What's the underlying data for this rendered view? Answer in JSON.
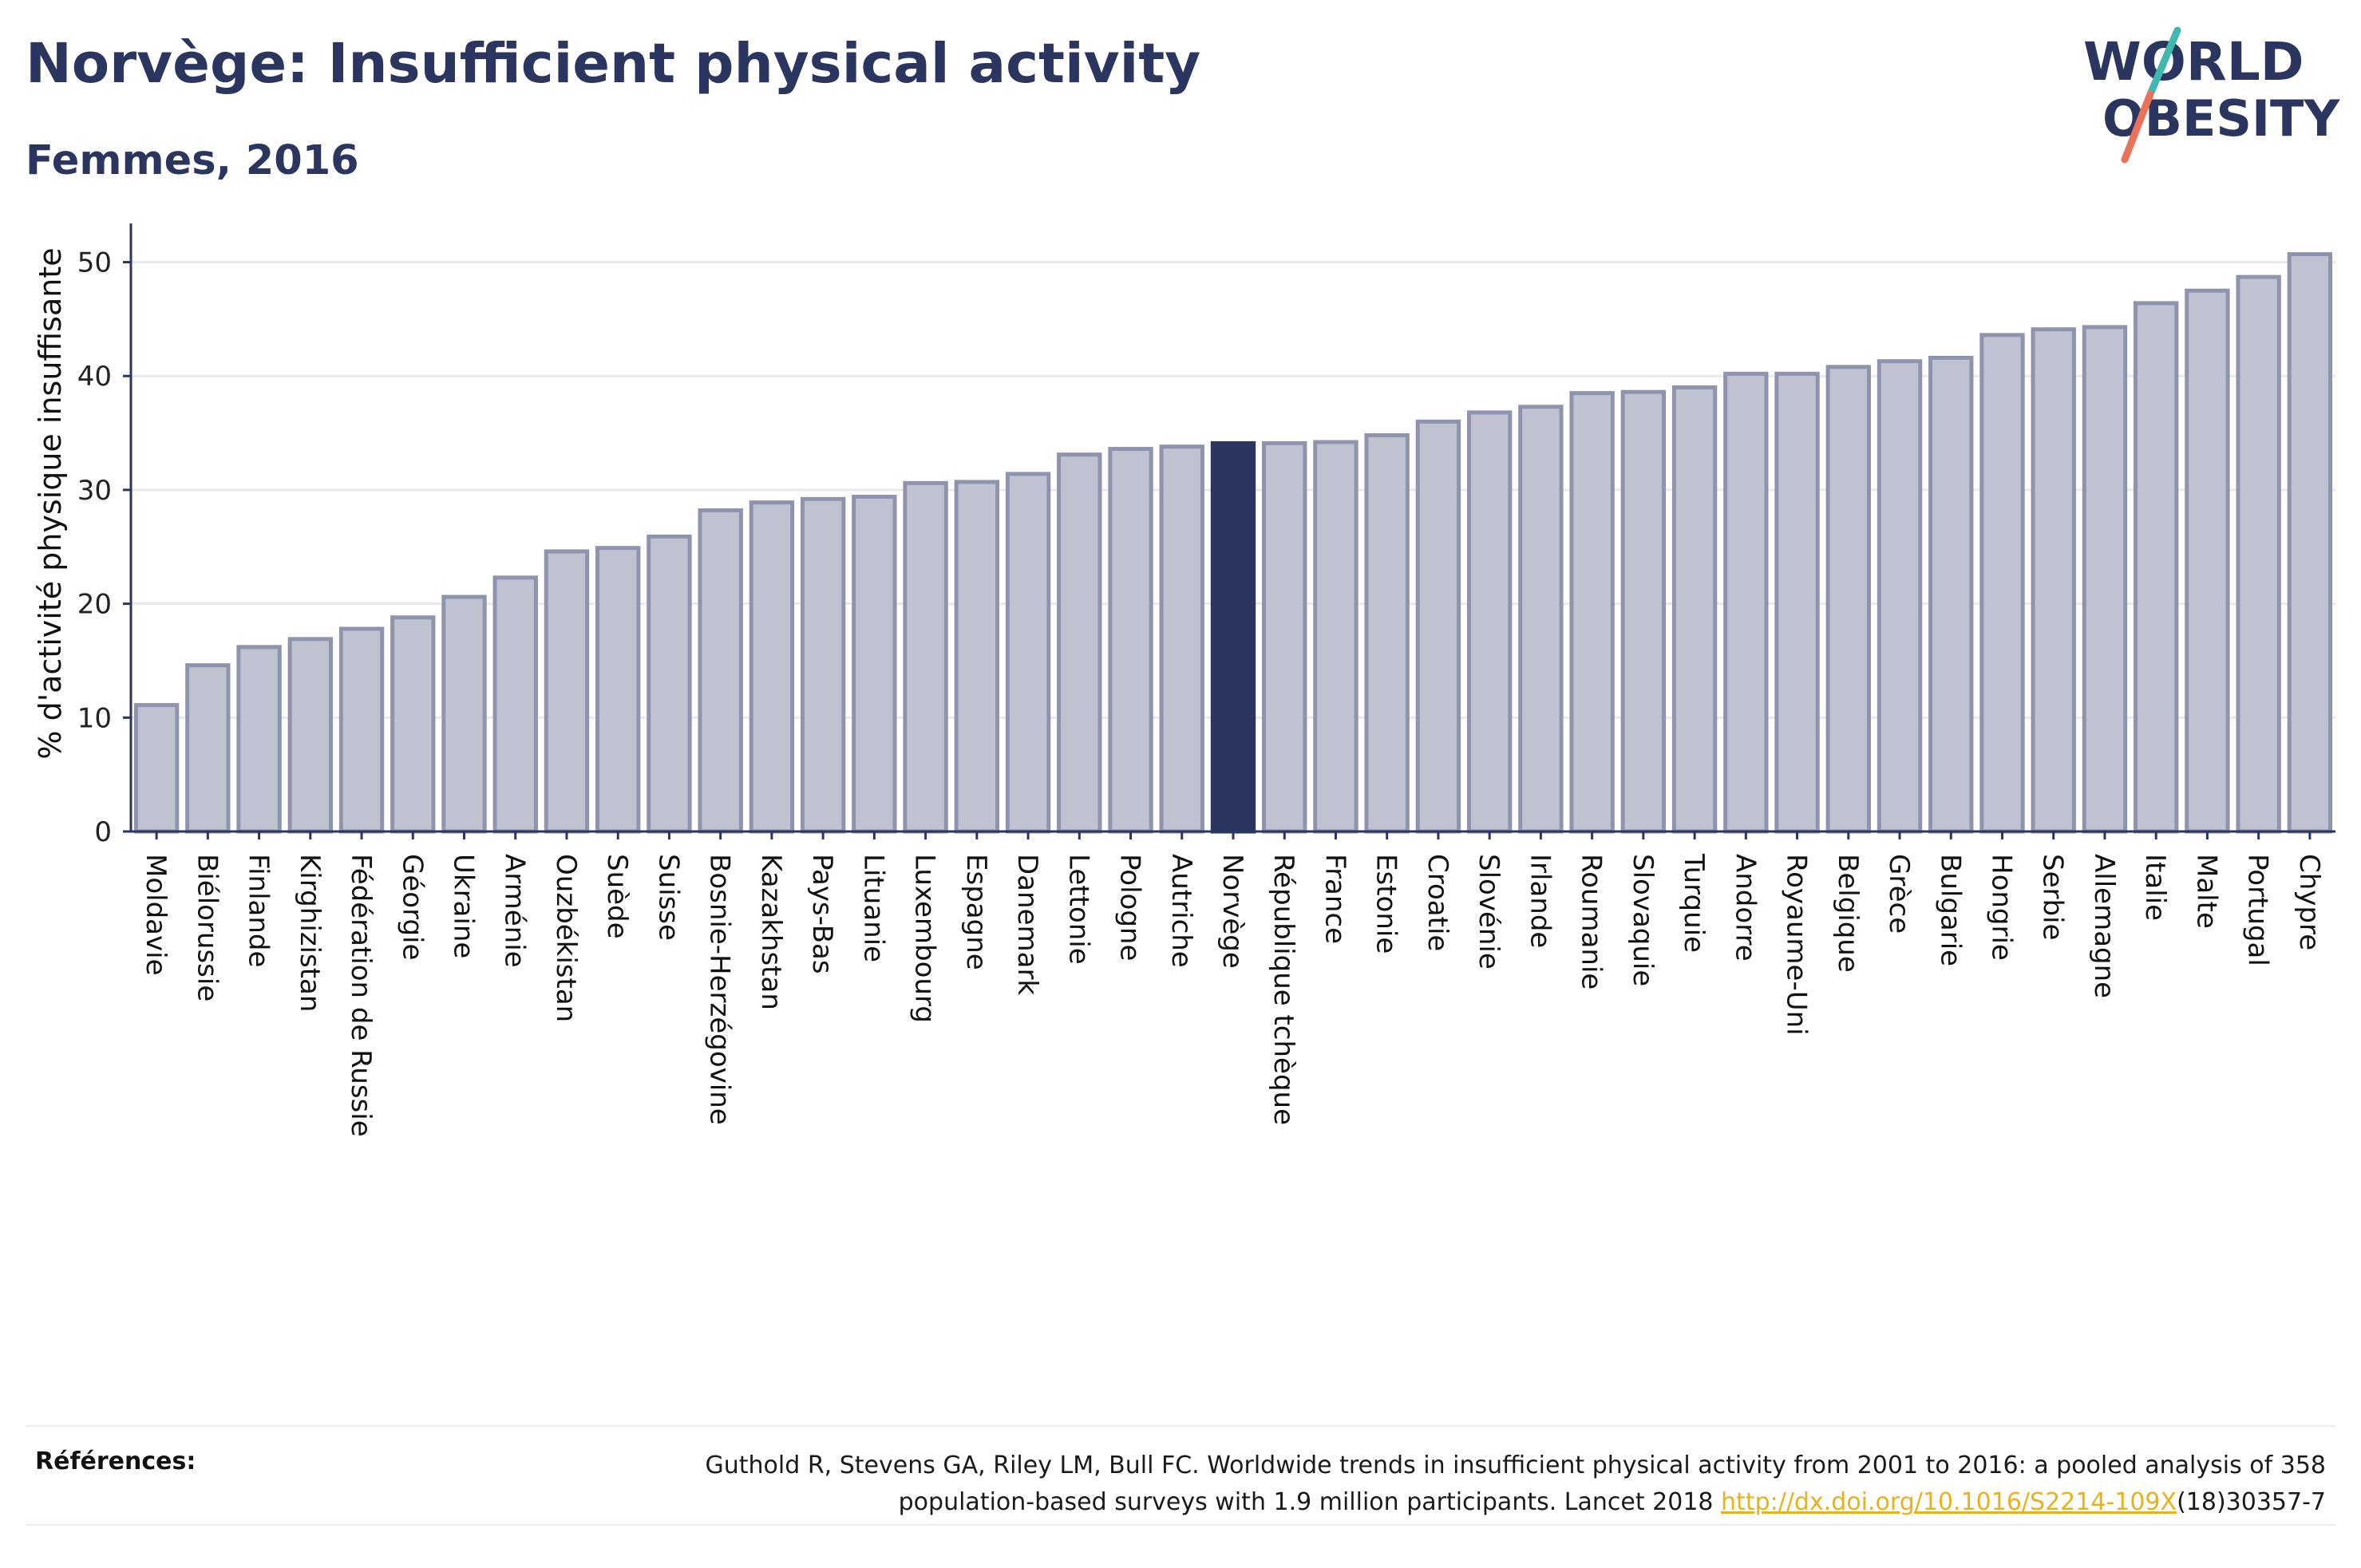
{
  "header": {
    "title": "Norvège: Insufficient physical activity",
    "subtitle": "Femmes, 2016"
  },
  "logo": {
    "line1": "WORLD",
    "line2": "OBESITY",
    "text_color": "#2b3660",
    "slash_teal": "#3fb8b0",
    "slash_coral": "#e8735a"
  },
  "colors": {
    "bar": "#bfc3d1",
    "bar_stroke": "#8e94ad",
    "highlight": "#2b3660",
    "grid": "#e9e9ee",
    "axis": "#2b3660"
  },
  "chart_data": {
    "type": "bar",
    "ylabel": "% d'activité physique insuffisante",
    "ylim": [
      0,
      52
    ],
    "yticks": [
      0,
      10,
      20,
      30,
      40,
      50
    ],
    "grid": true,
    "highlight": "Norvège",
    "categories": [
      "Moldavie",
      "Biélorussie",
      "Finlande",
      "Kirghizistan",
      "Fédération de Russie",
      "Géorgie",
      "Ukraine",
      "Arménie",
      "Ouzbékistan",
      "Suède",
      "Suisse",
      "Bosnie-Herzégovine",
      "Kazakhstan",
      "Pays-Bas",
      "Lituanie",
      "Luxembourg",
      "Espagne",
      "Danemark",
      "Lettonie",
      "Pologne",
      "Autriche",
      "Norvège",
      "République tchèque",
      "France",
      "Estonie",
      "Croatie",
      "Slovénie",
      "Irlande",
      "Roumanie",
      "Slovaquie",
      "Turquie",
      "Andorre",
      "Royaume-Uni",
      "Belgique",
      "Grèce",
      "Bulgarie",
      "Hongrie",
      "Serbie",
      "Allemagne",
      "Italie",
      "Malte",
      "Portugal",
      "Chypre"
    ],
    "values": [
      11.1,
      14.6,
      16.2,
      16.9,
      17.8,
      18.8,
      20.6,
      22.3,
      24.6,
      24.9,
      25.9,
      28.2,
      28.9,
      29.2,
      29.4,
      30.6,
      30.7,
      31.4,
      33.1,
      33.6,
      33.8,
      34.1,
      34.1,
      34.2,
      34.8,
      36.0,
      36.8,
      37.3,
      38.5,
      38.6,
      39.0,
      40.2,
      40.2,
      40.8,
      41.3,
      41.6,
      43.6,
      44.1,
      44.3,
      46.4,
      47.5,
      48.7,
      50.7
    ]
  },
  "references": {
    "label": "Références:",
    "text_1": "Guthold R, Stevens GA, Riley LM, Bull FC. Worldwide trends in insufficient physical activity from 2001 to 2016: a pooled analysis of 358",
    "text_2": "population-based surveys with 1.9 million participants. Lancet 2018 ",
    "link": "http://dx.doi.org/10.1016/S2214-109X",
    "text_3": "(18)30357-7"
  }
}
